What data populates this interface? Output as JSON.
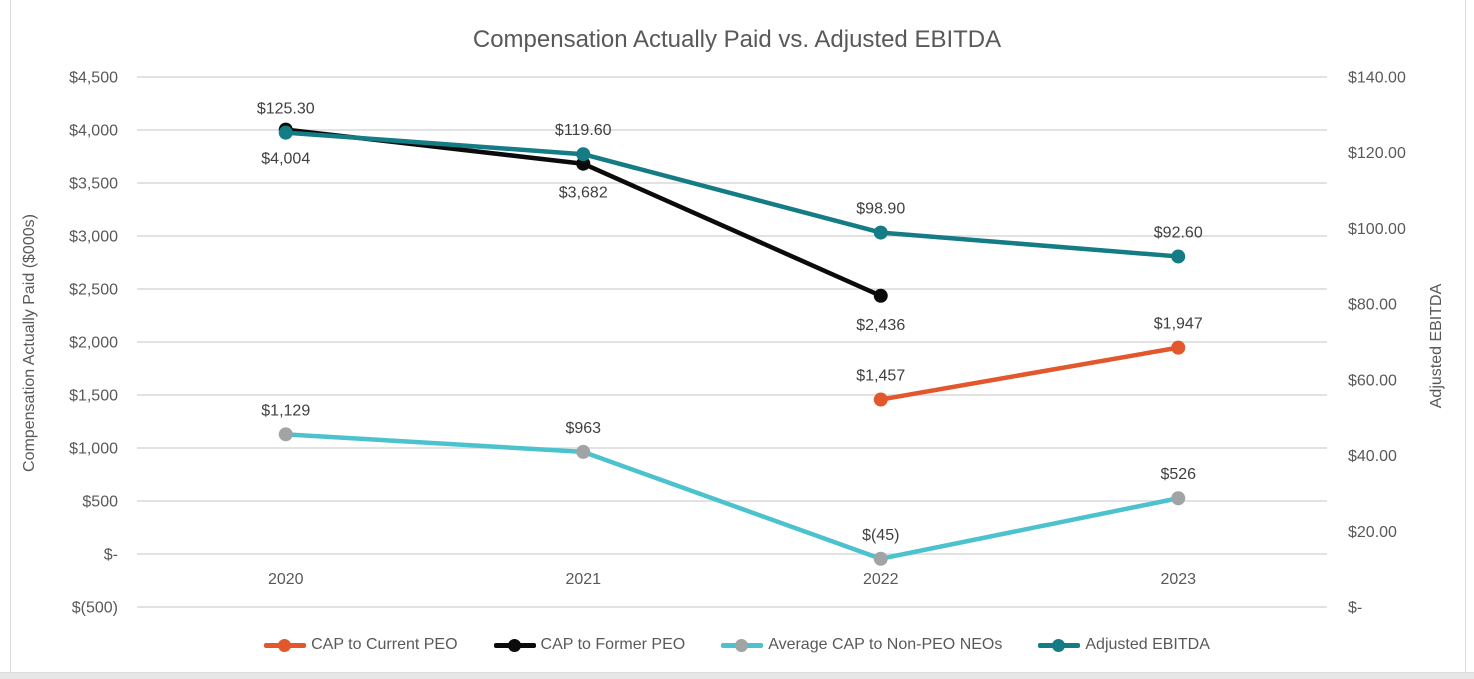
{
  "window": {
    "background": "#FFFFFF",
    "border_color": "#D9D9D9",
    "bottom_strip_color": "#E7E7E7"
  },
  "chart_data": {
    "type": "line",
    "title": "Compensation Actually Paid vs. Adjusted EBITDA",
    "categories": [
      "2020",
      "2021",
      "2022",
      "2023"
    ],
    "left_axis": {
      "title": "Compensation Actually Paid ($000s)",
      "min": -500,
      "max": 4500,
      "ticks": [
        {
          "value": 4500,
          "label": "$4,500"
        },
        {
          "value": 4000,
          "label": "$4,000"
        },
        {
          "value": 3500,
          "label": "$3,500"
        },
        {
          "value": 3000,
          "label": "$3,000"
        },
        {
          "value": 2500,
          "label": "$2,500"
        },
        {
          "value": 2000,
          "label": "$2,000"
        },
        {
          "value": 1500,
          "label": "$1,500"
        },
        {
          "value": 1000,
          "label": "$1,000"
        },
        {
          "value": 500,
          "label": "$500"
        },
        {
          "value": 0,
          "label": "$-"
        },
        {
          "value": -500,
          "label": "$(500)"
        }
      ]
    },
    "right_axis": {
      "title": "Adjusted EBITDA",
      "min": 0,
      "max": 140,
      "ticks": [
        {
          "value": 140,
          "label": "$140.00"
        },
        {
          "value": 120,
          "label": "$120.00"
        },
        {
          "value": 100,
          "label": "$100.00"
        },
        {
          "value": 80,
          "label": "$80.00"
        },
        {
          "value": 60,
          "label": "$60.00"
        },
        {
          "value": 40,
          "label": "$40.00"
        },
        {
          "value": 20,
          "label": "$20.00"
        },
        {
          "value": 0,
          "label": "$-"
        }
      ]
    },
    "grid": true,
    "legend_position": "bottom",
    "colors": {
      "gridline": "#D9D9D9",
      "axis_text": "#595959",
      "data_label_text": "#404040",
      "title_text": "#595959"
    },
    "series": [
      {
        "name": "CAP to Current PEO",
        "color": "#E2572B",
        "marker_color": "#E2572B",
        "axis": "left",
        "label_position": "above",
        "points": [
          {
            "category": "2022",
            "value": 1457,
            "label": "$1,457"
          },
          {
            "category": "2023",
            "value": 1947,
            "label": "$1,947"
          }
        ]
      },
      {
        "name": "CAP to Former PEO",
        "color": "#0B0B0B",
        "marker_color": "#0B0B0B",
        "axis": "left",
        "label_position": "below",
        "points": [
          {
            "category": "2020",
            "value": 4004,
            "label": "$4,004"
          },
          {
            "category": "2021",
            "value": 3682,
            "label": "$3,682"
          },
          {
            "category": "2022",
            "value": 2436,
            "label": "$2,436"
          }
        ]
      },
      {
        "name": "Average CAP to Non-PEO NEOs",
        "color": "#4BC2CD",
        "marker_color": "#A0A4A4",
        "axis": "left",
        "label_position": "above",
        "points": [
          {
            "category": "2020",
            "value": 1129,
            "label": "$1,129"
          },
          {
            "category": "2021",
            "value": 963,
            "label": "$963"
          },
          {
            "category": "2022",
            "value": -45,
            "label": "$(45)"
          },
          {
            "category": "2023",
            "value": 526,
            "label": "$526"
          }
        ]
      },
      {
        "name": "Adjusted EBITDA",
        "color": "#147C85",
        "marker_color": "#147C85",
        "axis": "right",
        "label_position": "above",
        "points": [
          {
            "category": "2020",
            "value": 125.3,
            "label": "$125.30"
          },
          {
            "category": "2021",
            "value": 119.6,
            "label": "$119.60"
          },
          {
            "category": "2022",
            "value": 98.9,
            "label": "$98.90"
          },
          {
            "category": "2023",
            "value": 92.6,
            "label": "$92.60"
          }
        ]
      }
    ]
  }
}
